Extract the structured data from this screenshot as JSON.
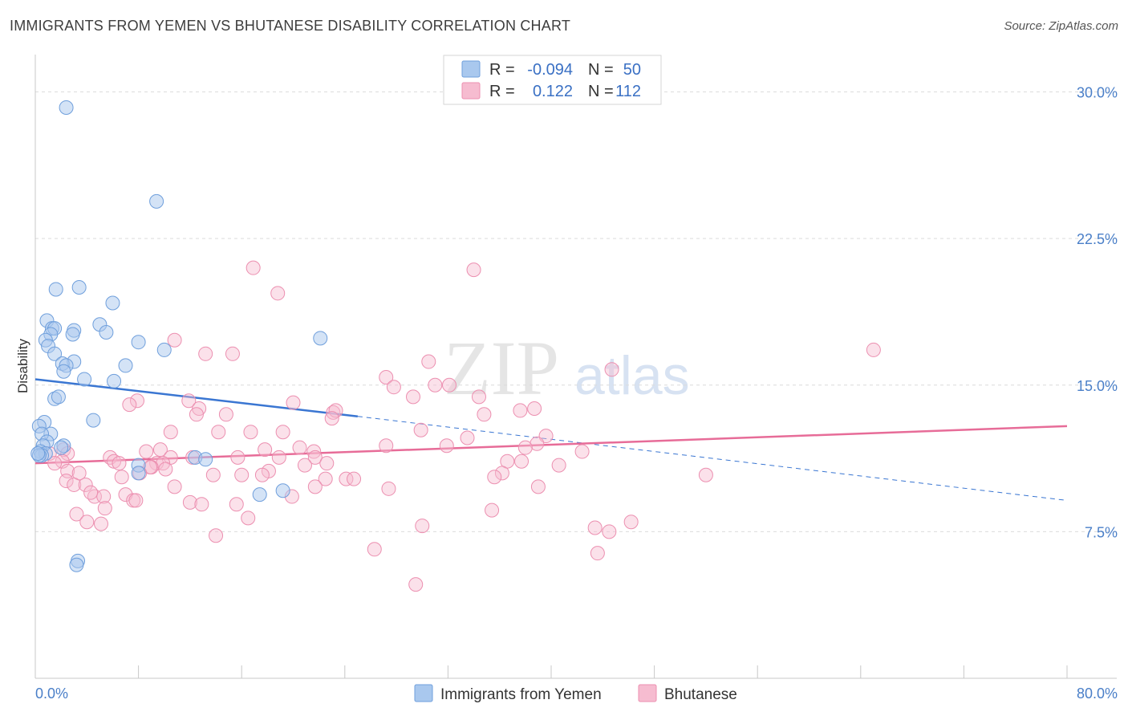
{
  "title": "IMMIGRANTS FROM YEMEN VS BHUTANESE DISABILITY CORRELATION CHART",
  "source": "Source: ZipAtlas.com",
  "colors": {
    "yemen": "#a9c8ee",
    "yemen_stroke": "#6f9fdc",
    "yemen_line": "#3a76d2",
    "bhutanese": "#f6bcd0",
    "bhutanese_stroke": "#ec8fb0",
    "bhutanese_line": "#e76c98",
    "value_text": "#3a70c4"
  },
  "legend": {
    "rows": [
      {
        "r_label": "R =",
        "r_value": "-0.094",
        "n_label": "N =",
        "n_value": "50"
      },
      {
        "r_label": "R =",
        "r_value": "0.122",
        "n_label": "N =",
        "n_value": "112"
      }
    ]
  },
  "watermark": {
    "zip": "ZIP",
    "atlas": "atlas"
  },
  "chart_data": {
    "type": "scatter",
    "title": "IMMIGRANTS FROM YEMEN VS BHUTANESE DISABILITY CORRELATION CHART",
    "xlabel": "",
    "ylabel": "Disability",
    "xlim": [
      0,
      80
    ],
    "ylim": [
      0,
      31.5
    ],
    "x_tick_labels": [
      "0.0%",
      "80.0%"
    ],
    "y_ticks": [
      7.5,
      15.0,
      22.5,
      30.0
    ],
    "y_tick_labels": [
      "7.5%",
      "15.0%",
      "22.5%",
      "30.0%"
    ],
    "grid": "horizontal dashed",
    "legend_position": "top-center",
    "series": [
      {
        "name": "Immigrants from Yemen",
        "r": -0.094,
        "n": 50,
        "trend": {
          "x0": 0,
          "y0": 15.3,
          "x1": 25,
          "y1": 13.4,
          "dash_to_x": 80,
          "dash_to_y": 9.1
        },
        "points": [
          [
            2.4,
            29.2
          ],
          [
            9.4,
            24.4
          ],
          [
            3.4,
            20.0
          ],
          [
            1.6,
            19.9
          ],
          [
            6.0,
            19.2
          ],
          [
            0.9,
            18.3
          ],
          [
            5.0,
            18.1
          ],
          [
            1.3,
            17.9
          ],
          [
            1.5,
            17.9
          ],
          [
            3.0,
            17.8
          ],
          [
            1.2,
            17.6
          ],
          [
            2.9,
            17.6
          ],
          [
            5.5,
            17.7
          ],
          [
            0.8,
            17.3
          ],
          [
            8.0,
            17.2
          ],
          [
            22.1,
            17.4
          ],
          [
            1.0,
            17.0
          ],
          [
            10.0,
            16.8
          ],
          [
            1.5,
            16.6
          ],
          [
            3.0,
            16.2
          ],
          [
            2.1,
            16.1
          ],
          [
            2.4,
            16.0
          ],
          [
            7.0,
            16.0
          ],
          [
            2.2,
            15.7
          ],
          [
            3.8,
            15.3
          ],
          [
            6.1,
            15.2
          ],
          [
            1.5,
            14.3
          ],
          [
            1.8,
            14.4
          ],
          [
            4.5,
            13.2
          ],
          [
            0.7,
            13.1
          ],
          [
            0.3,
            12.9
          ],
          [
            1.2,
            12.5
          ],
          [
            0.5,
            12.5
          ],
          [
            0.9,
            12.1
          ],
          [
            0.6,
            11.9
          ],
          [
            2.2,
            11.9
          ],
          [
            2.0,
            11.8
          ],
          [
            0.4,
            11.6
          ],
          [
            0.8,
            11.5
          ],
          [
            0.5,
            11.4
          ],
          [
            0.3,
            11.4
          ],
          [
            12.4,
            11.3
          ],
          [
            13.2,
            11.2
          ],
          [
            8.0,
            10.9
          ],
          [
            8.0,
            10.5
          ],
          [
            17.4,
            9.4
          ],
          [
            19.2,
            9.6
          ],
          [
            3.3,
            6.0
          ],
          [
            3.2,
            5.8
          ],
          [
            0.2,
            11.5
          ]
        ]
      },
      {
        "name": "Bhutanese",
        "r": 0.122,
        "n": 112,
        "trend": {
          "x0": 0,
          "y0": 11.0,
          "x1": 80,
          "y1": 12.9
        },
        "points": [
          [
            16.9,
            21.0
          ],
          [
            34.0,
            20.9
          ],
          [
            18.8,
            19.7
          ],
          [
            65.0,
            16.8
          ],
          [
            10.8,
            17.3
          ],
          [
            13.2,
            16.6
          ],
          [
            15.3,
            16.6
          ],
          [
            30.5,
            16.2
          ],
          [
            44.7,
            15.8
          ],
          [
            27.2,
            15.4
          ],
          [
            27.8,
            14.9
          ],
          [
            31.0,
            15.0
          ],
          [
            32.1,
            15.0
          ],
          [
            29.3,
            14.4
          ],
          [
            34.4,
            14.4
          ],
          [
            7.9,
            14.2
          ],
          [
            11.9,
            14.2
          ],
          [
            7.3,
            14.0
          ],
          [
            20.0,
            14.1
          ],
          [
            37.6,
            13.7
          ],
          [
            38.7,
            13.8
          ],
          [
            12.7,
            13.8
          ],
          [
            23.1,
            13.6
          ],
          [
            23.3,
            13.7
          ],
          [
            12.5,
            13.5
          ],
          [
            14.8,
            13.5
          ],
          [
            34.8,
            13.5
          ],
          [
            23.0,
            13.3
          ],
          [
            29.9,
            12.7
          ],
          [
            10.5,
            12.6
          ],
          [
            14.2,
            12.6
          ],
          [
            16.7,
            12.6
          ],
          [
            19.2,
            12.6
          ],
          [
            33.5,
            12.3
          ],
          [
            39.6,
            12.4
          ],
          [
            38.9,
            12.0
          ],
          [
            27.2,
            11.9
          ],
          [
            38.0,
            11.8
          ],
          [
            31.9,
            11.9
          ],
          [
            17.8,
            11.7
          ],
          [
            20.5,
            11.8
          ],
          [
            8.6,
            11.6
          ],
          [
            21.6,
            11.6
          ],
          [
            9.7,
            11.7
          ],
          [
            42.4,
            11.6
          ],
          [
            2.2,
            11.7
          ],
          [
            2.5,
            11.5
          ],
          [
            1.1,
            11.5
          ],
          [
            5.8,
            11.3
          ],
          [
            10.5,
            11.3
          ],
          [
            12.2,
            11.3
          ],
          [
            15.7,
            11.3
          ],
          [
            18.9,
            11.3
          ],
          [
            21.7,
            11.3
          ],
          [
            6.1,
            11.1
          ],
          [
            6.5,
            11.0
          ],
          [
            9.4,
            11.0
          ],
          [
            9.9,
            11.0
          ],
          [
            22.6,
            11.0
          ],
          [
            36.6,
            11.1
          ],
          [
            37.7,
            11.1
          ],
          [
            40.6,
            10.9
          ],
          [
            2.1,
            11.1
          ],
          [
            1.5,
            11.0
          ],
          [
            20.9,
            10.9
          ],
          [
            9.0,
            10.8
          ],
          [
            8.9,
            10.8
          ],
          [
            10.1,
            10.7
          ],
          [
            8.1,
            10.5
          ],
          [
            18.1,
            10.6
          ],
          [
            36.2,
            10.5
          ],
          [
            35.6,
            10.3
          ],
          [
            52.0,
            10.4
          ],
          [
            2.5,
            10.6
          ],
          [
            3.4,
            10.5
          ],
          [
            6.7,
            10.3
          ],
          [
            13.8,
            10.4
          ],
          [
            16.0,
            10.4
          ],
          [
            17.6,
            10.4
          ],
          [
            22.5,
            10.2
          ],
          [
            24.1,
            10.2
          ],
          [
            24.7,
            10.2
          ],
          [
            2.4,
            10.1
          ],
          [
            3.0,
            9.9
          ],
          [
            3.9,
            9.9
          ],
          [
            10.8,
            9.8
          ],
          [
            21.7,
            9.8
          ],
          [
            27.4,
            9.7
          ],
          [
            39.0,
            9.8
          ],
          [
            4.6,
            9.3
          ],
          [
            5.3,
            9.3
          ],
          [
            7.0,
            9.4
          ],
          [
            7.6,
            9.1
          ],
          [
            7.8,
            9.1
          ],
          [
            12.0,
            9.0
          ],
          [
            12.9,
            8.9
          ],
          [
            15.6,
            8.9
          ],
          [
            19.9,
            9.3
          ],
          [
            4.3,
            9.5
          ],
          [
            5.4,
            8.7
          ],
          [
            35.4,
            8.6
          ],
          [
            16.5,
            8.2
          ],
          [
            3.2,
            8.4
          ],
          [
            4.0,
            8.0
          ],
          [
            5.1,
            7.9
          ],
          [
            30.0,
            7.8
          ],
          [
            43.4,
            7.7
          ],
          [
            44.5,
            7.5
          ],
          [
            46.2,
            8.0
          ],
          [
            14.0,
            7.3
          ],
          [
            43.6,
            6.4
          ],
          [
            26.3,
            6.6
          ],
          [
            29.5,
            4.8
          ]
        ]
      }
    ]
  }
}
